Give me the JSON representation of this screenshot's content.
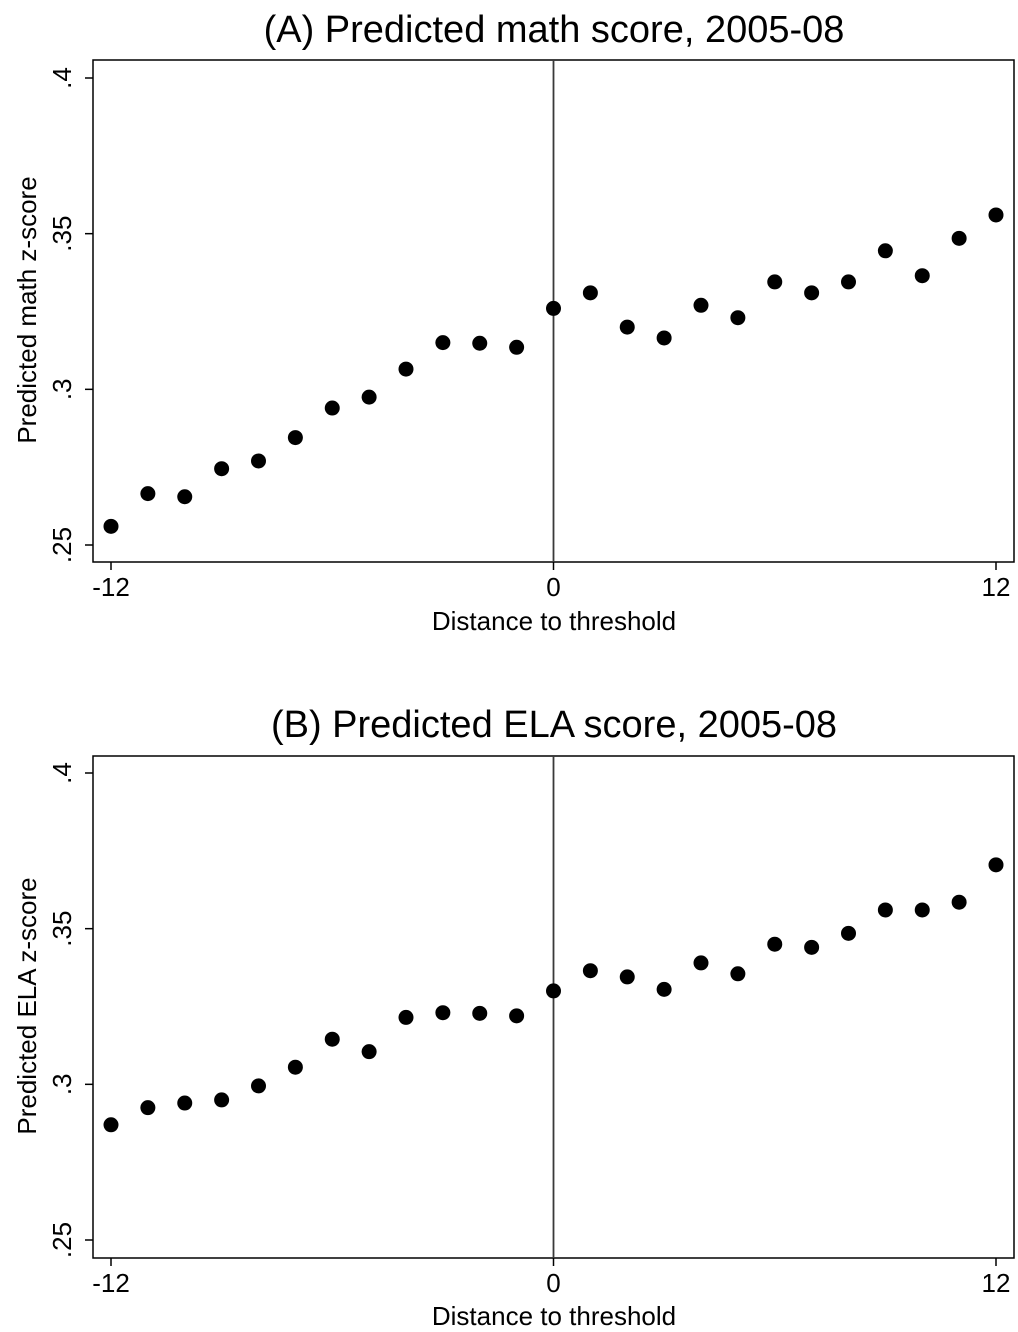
{
  "chart_data": [
    {
      "type": "scatter",
      "title": "(A) Predicted math score, 2005-08",
      "xlabel": "Distance to threshold",
      "ylabel": "Predicted math z-score",
      "xlim": [
        -12,
        12
      ],
      "ylim": [
        0.25,
        0.4
      ],
      "xticks": [
        -12,
        0,
        12
      ],
      "xtick_labels": [
        "-12",
        "0",
        "12"
      ],
      "yticks": [
        0.25,
        0.3,
        0.35,
        0.4
      ],
      "ytick_labels": [
        ".25",
        ".3",
        ".35",
        ".4"
      ],
      "vline": 0,
      "grid": false,
      "x": [
        -12,
        -11,
        -10,
        -9,
        -8,
        -7,
        -6,
        -5,
        -4,
        -3,
        -2,
        -1,
        0,
        1,
        2,
        3,
        4,
        5,
        6,
        7,
        8,
        9,
        10,
        11,
        12
      ],
      "y": [
        0.256,
        0.2665,
        0.2655,
        0.2745,
        0.277,
        0.2845,
        0.294,
        0.2975,
        0.3065,
        0.315,
        0.3148,
        0.3135,
        0.326,
        0.331,
        0.32,
        0.3165,
        0.327,
        0.323,
        0.3345,
        0.331,
        0.3345,
        0.3445,
        0.3365,
        0.3485,
        0.356
      ],
      "color": "#000000"
    },
    {
      "type": "scatter",
      "title": "(B) Predicted ELA score, 2005-08",
      "xlabel": "Distance to threshold",
      "ylabel": "Predicted ELA z-score",
      "xlim": [
        -12,
        12
      ],
      "ylim": [
        0.25,
        0.4
      ],
      "xticks": [
        -12,
        0,
        12
      ],
      "xtick_labels": [
        "-12",
        "0",
        "12"
      ],
      "yticks": [
        0.25,
        0.3,
        0.35,
        0.4
      ],
      "ytick_labels": [
        ".25",
        ".3",
        ".35",
        ".4"
      ],
      "vline": 0,
      "grid": false,
      "x": [
        -12,
        -11,
        -10,
        -9,
        -8,
        -7,
        -6,
        -5,
        -4,
        -3,
        -2,
        -1,
        0,
        1,
        2,
        3,
        4,
        5,
        6,
        7,
        8,
        9,
        10,
        11,
        12
      ],
      "y": [
        0.287,
        0.2925,
        0.294,
        0.295,
        0.2995,
        0.3055,
        0.3145,
        0.3105,
        0.3215,
        0.323,
        0.3228,
        0.322,
        0.33,
        0.3365,
        0.3345,
        0.3305,
        0.339,
        0.3355,
        0.345,
        0.344,
        0.3485,
        0.356,
        0.356,
        0.3585,
        0.3705
      ],
      "color": "#000000"
    }
  ]
}
